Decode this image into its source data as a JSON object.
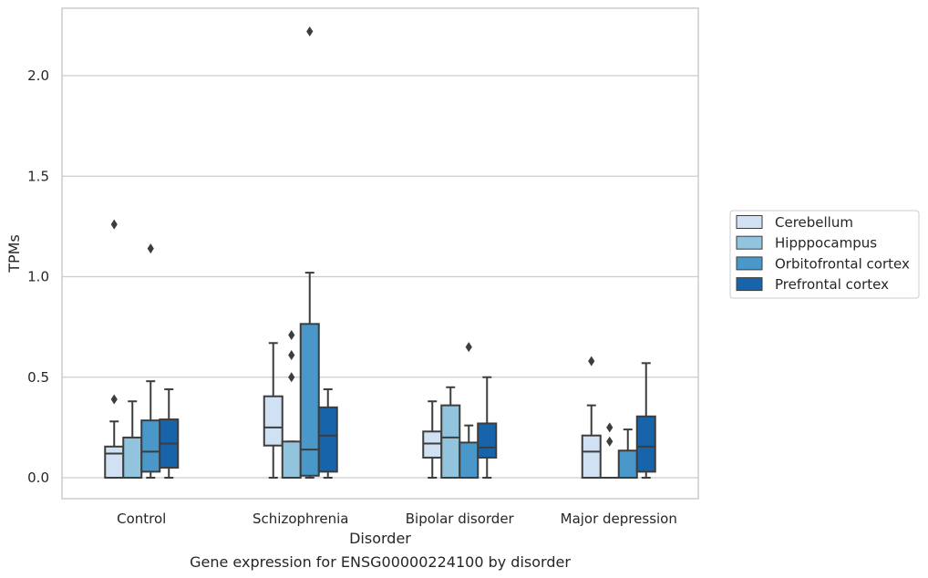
{
  "chart_data": {
    "type": "box",
    "caption": "Gene expression for ENSG00000224100 by disorder",
    "xlabel": "Disorder",
    "ylabel": "TPMs",
    "ylim": [
      -0.11,
      2.34
    ],
    "yticks": [
      "0.0",
      "0.5",
      "1.0",
      "1.5",
      "2.0"
    ],
    "grid": true,
    "legend_position": "right",
    "categories": [
      "Control",
      "Schizophrenia",
      "Bipolar disorder",
      "Major depression"
    ],
    "series": [
      {
        "name": "Cerebellum",
        "color": "#cfe1f2",
        "boxes": [
          {
            "whislo": 0.0,
            "q1": 0.0,
            "med": 0.12,
            "q3": 0.155,
            "whishi": 0.28,
            "fliers": [
              0.39,
              1.26
            ]
          },
          {
            "whislo": 0.0,
            "q1": 0.16,
            "med": 0.25,
            "q3": 0.405,
            "whishi": 0.67,
            "fliers": []
          },
          {
            "whislo": 0.0,
            "q1": 0.1,
            "med": 0.17,
            "q3": 0.23,
            "whishi": 0.38,
            "fliers": []
          },
          {
            "whislo": 0.0,
            "q1": 0.0,
            "med": 0.13,
            "q3": 0.21,
            "whishi": 0.36,
            "fliers": [
              0.58
            ]
          }
        ]
      },
      {
        "name": "Hipppocampus",
        "color": "#93c4de",
        "boxes": [
          {
            "whislo": 0.0,
            "q1": 0.0,
            "med": 0.0,
            "q3": 0.2,
            "whishi": 0.38,
            "fliers": []
          },
          {
            "whislo": 0.0,
            "q1": 0.0,
            "med": 0.0,
            "q3": 0.18,
            "whishi": 0.18,
            "fliers": [
              0.5,
              0.61,
              0.71
            ]
          },
          {
            "whislo": 0.0,
            "q1": 0.0,
            "med": 0.2,
            "q3": 0.36,
            "whishi": 0.45,
            "fliers": []
          },
          {
            "whislo": 0.0,
            "q1": 0.0,
            "med": 0.0,
            "q3": 0.0,
            "whishi": 0.0,
            "fliers": [
              0.18,
              0.25
            ]
          }
        ]
      },
      {
        "name": "Orbitofrontal cortex",
        "color": "#4a98c9",
        "boxes": [
          {
            "whislo": 0.0,
            "q1": 0.03,
            "med": 0.13,
            "q3": 0.285,
            "whishi": 0.48,
            "fliers": [
              1.14
            ]
          },
          {
            "whislo": 0.0,
            "q1": 0.01,
            "med": 0.14,
            "q3": 0.765,
            "whishi": 1.02,
            "fliers": [
              2.22
            ]
          },
          {
            "whislo": 0.0,
            "q1": 0.0,
            "med": 0.0,
            "q3": 0.175,
            "whishi": 0.26,
            "fliers": [
              0.65
            ]
          },
          {
            "whislo": 0.0,
            "q1": 0.0,
            "med": 0.0,
            "q3": 0.135,
            "whishi": 0.24,
            "fliers": []
          }
        ]
      },
      {
        "name": "Prefrontal cortex",
        "color": "#1764ab",
        "boxes": [
          {
            "whislo": 0.0,
            "q1": 0.05,
            "med": 0.17,
            "q3": 0.29,
            "whishi": 0.44,
            "fliers": []
          },
          {
            "whislo": 0.0,
            "q1": 0.03,
            "med": 0.21,
            "q3": 0.35,
            "whishi": 0.44,
            "fliers": []
          },
          {
            "whislo": 0.0,
            "q1": 0.1,
            "med": 0.15,
            "q3": 0.27,
            "whishi": 0.5,
            "fliers": []
          },
          {
            "whislo": 0.0,
            "q1": 0.03,
            "med": 0.155,
            "q3": 0.305,
            "whishi": 0.57,
            "fliers": []
          }
        ]
      }
    ]
  }
}
